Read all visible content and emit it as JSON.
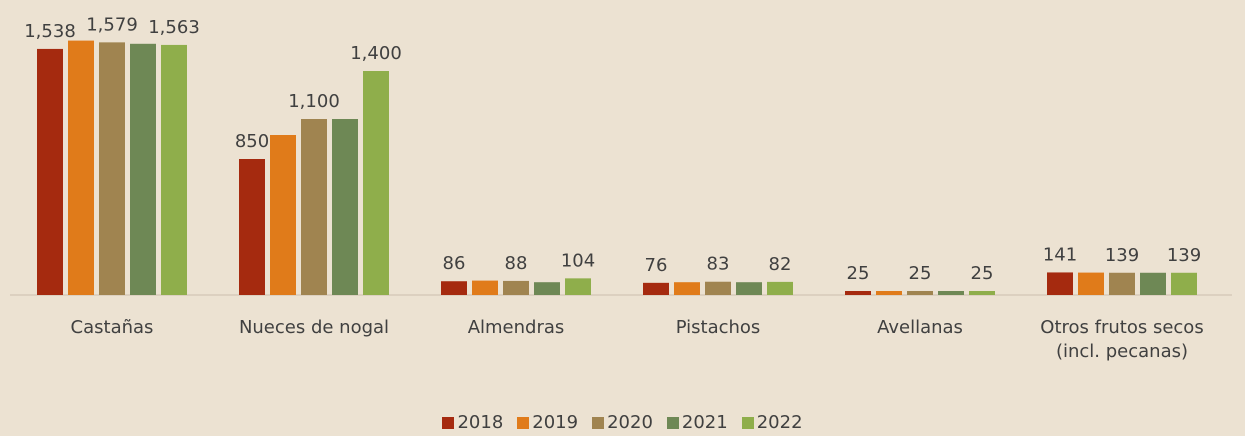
{
  "chart_data": {
    "type": "bar",
    "categories": [
      "Castañas",
      "Nueces de nogal",
      "Almendras",
      "Pistachos",
      "Avellanas",
      "Otros frutos secos (incl. pecanas)"
    ],
    "series": [
      {
        "name": "2018",
        "color": "#a52a0f",
        "values": [
          1538,
          850,
          86,
          76,
          25,
          141
        ],
        "value_labels": [
          "1,538",
          "850",
          "86",
          "76",
          "25",
          "141"
        ]
      },
      {
        "name": "2019",
        "color": "#e07b1a",
        "values": [
          1590,
          1000,
          90,
          80,
          25,
          140
        ]
      },
      {
        "name": "2020",
        "color": "#a08450",
        "values": [
          1579,
          1100,
          88,
          83,
          25,
          139
        ],
        "value_labels": [
          "1,579",
          "1,100",
          "88",
          "83",
          "25",
          "139"
        ]
      },
      {
        "name": "2021",
        "color": "#6e8855",
        "values": [
          1570,
          1100,
          80,
          80,
          25,
          139
        ]
      },
      {
        "name": "2022",
        "color": "#8fae4b",
        "values": [
          1563,
          1400,
          104,
          82,
          25,
          139
        ],
        "value_labels": [
          "1,563",
          "1,400",
          "104",
          "82",
          "25",
          "139"
        ]
      }
    ]
  }
}
